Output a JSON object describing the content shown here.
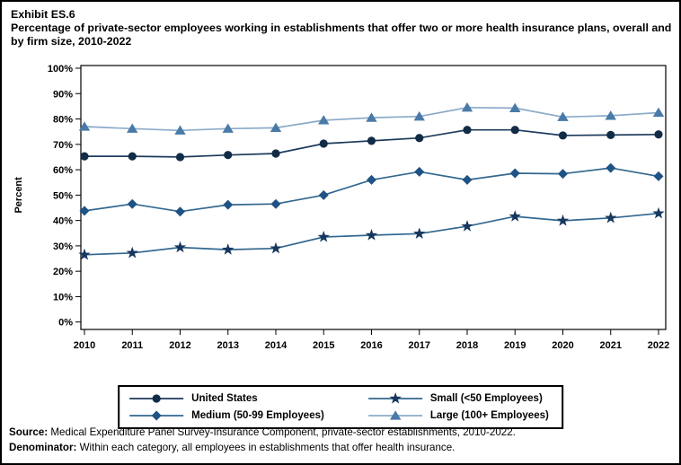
{
  "figure": {
    "exhibit_label": "Exhibit ES.6",
    "title": "Percentage of private-sector employees working in establishments that offer two or more health insurance plans, overall and by firm size, 2010-2022"
  },
  "chart_data": {
    "type": "line",
    "x": [
      2010,
      2011,
      2012,
      2013,
      2014,
      2015,
      2016,
      2017,
      2018,
      2019,
      2020,
      2021,
      2022
    ],
    "xlabel": "",
    "ylabel": "Percent",
    "ylim": [
      0,
      100
    ],
    "ytick_step": 10,
    "ytick_suffix": "%",
    "grid": false,
    "legend_position": "bottom-center",
    "series": [
      {
        "name": "United States",
        "marker": "circle",
        "line_color": "#1c3a5c",
        "marker_color": "#122c47",
        "values": [
          65.3,
          65.3,
          65.0,
          65.8,
          66.4,
          70.3,
          71.4,
          72.5,
          75.7,
          75.7,
          73.5,
          73.7,
          73.9
        ]
      },
      {
        "name": "Medium (50-99 Employees)",
        "marker": "diamond",
        "line_color": "#32678f",
        "marker_color": "#1f5285",
        "values": [
          43.8,
          46.5,
          43.5,
          46.2,
          46.5,
          50.0,
          56.0,
          59.2,
          56.0,
          58.6,
          58.4,
          60.7,
          57.4
        ]
      },
      {
        "name": "Small (<50 Employees)",
        "marker": "star",
        "line_color": "#32678f",
        "marker_color": "#17375e",
        "values": [
          26.5,
          27.2,
          29.4,
          28.5,
          29.0,
          33.5,
          34.2,
          34.8,
          37.7,
          41.6,
          39.9,
          41.0,
          42.8
        ]
      },
      {
        "name": "Large (100+ Employees)",
        "marker": "triangle",
        "line_color": "#8cabc9",
        "marker_color": "#4a7aa8",
        "values": [
          77.0,
          76.2,
          75.5,
          76.2,
          76.5,
          79.5,
          80.5,
          81.0,
          84.5,
          84.3,
          80.8,
          81.3,
          82.5
        ]
      }
    ],
    "legend_order": [
      "United States",
      "Small (<50 Employees)",
      "Medium (50-99 Employees)",
      "Large (100+ Employees)"
    ]
  },
  "footer": {
    "source_label": "Source:",
    "source_text": " Medical Expenditure Panel Survey-Insurance Component, private-sector establishments, 2010-2022.",
    "denominator_label": "Denominator:",
    "denominator_text": " Within each category, all employees in establishments that offer health insurance."
  }
}
